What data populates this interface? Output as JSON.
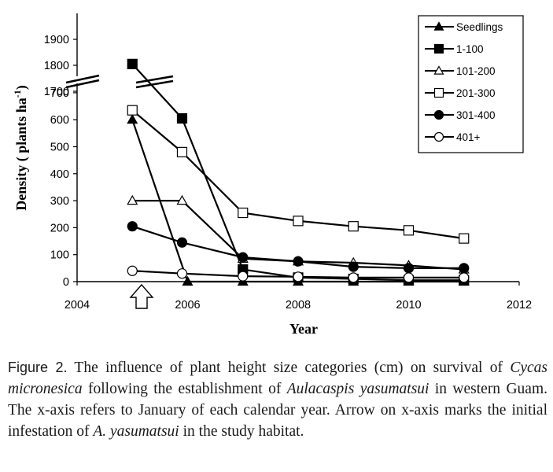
{
  "chart_data": {
    "type": "line",
    "xlabel": "Year",
    "ylabel_main": "Density ( plants ha",
    "ylabel_sup": "-1",
    "ylabel_close": ")",
    "xlim": [
      2004,
      2012
    ],
    "x_ticks": [
      "2004",
      "2006",
      "2008",
      "2010",
      "2012"
    ],
    "y_ticks_lower": [
      "0",
      "100",
      "200",
      "300",
      "400",
      "500",
      "600",
      "700"
    ],
    "y_ticks_upper": [
      "1700",
      "1800",
      "1900"
    ],
    "y_axis_break": [
      700,
      1700
    ],
    "grid": false,
    "legend_position": "top-right",
    "annotation": "arrow marking initial infestation at 2005.1",
    "series": [
      {
        "name": "Seedlings",
        "marker": "triangle-filled",
        "x": [
          2005,
          2006,
          2007,
          2008,
          2009,
          2010,
          2011
        ],
        "y": [
          600,
          0,
          0,
          0,
          0,
          0,
          0
        ]
      },
      {
        "name": "1-100",
        "marker": "square-filled",
        "x": [
          2005,
          2005.9,
          2007,
          2008,
          2009,
          2010,
          2011
        ],
        "y": [
          1805,
          605,
          45,
          15,
          10,
          5,
          5
        ]
      },
      {
        "name": "101-200",
        "marker": "triangle-open",
        "x": [
          2005,
          2005.9,
          2007,
          2008,
          2009,
          2010,
          2011
        ],
        "y": [
          300,
          300,
          85,
          75,
          70,
          60,
          45
        ]
      },
      {
        "name": "201-300",
        "marker": "square-open",
        "x": [
          2005,
          2005.9,
          2007,
          2008,
          2009,
          2010,
          2011
        ],
        "y": [
          635,
          480,
          255,
          225,
          205,
          190,
          160
        ]
      },
      {
        "name": "301-400",
        "marker": "circle-filled",
        "x": [
          2005,
          2005.9,
          2007,
          2008,
          2009,
          2010,
          2011
        ],
        "y": [
          205,
          145,
          90,
          75,
          55,
          50,
          50
        ]
      },
      {
        "name": "401+",
        "marker": "circle-open",
        "x": [
          2005,
          2005.9,
          2007,
          2008,
          2009,
          2010,
          2011
        ],
        "y": [
          40,
          30,
          20,
          18,
          15,
          15,
          15
        ]
      }
    ]
  },
  "caption": {
    "label": "Figure 2.",
    "t1": " The influence of plant height size categories (cm) on survival of ",
    "i1": "Cycas micronesica",
    "t2": " following the establishment of ",
    "i2": "Aulacaspis yasumatsui",
    "t3": " in western Guam. The x-axis refers to January of each calendar year. Arrow on x-axis marks the initial infestation of ",
    "i3": "A. yasumatsui",
    "t4": " in the study habitat."
  }
}
